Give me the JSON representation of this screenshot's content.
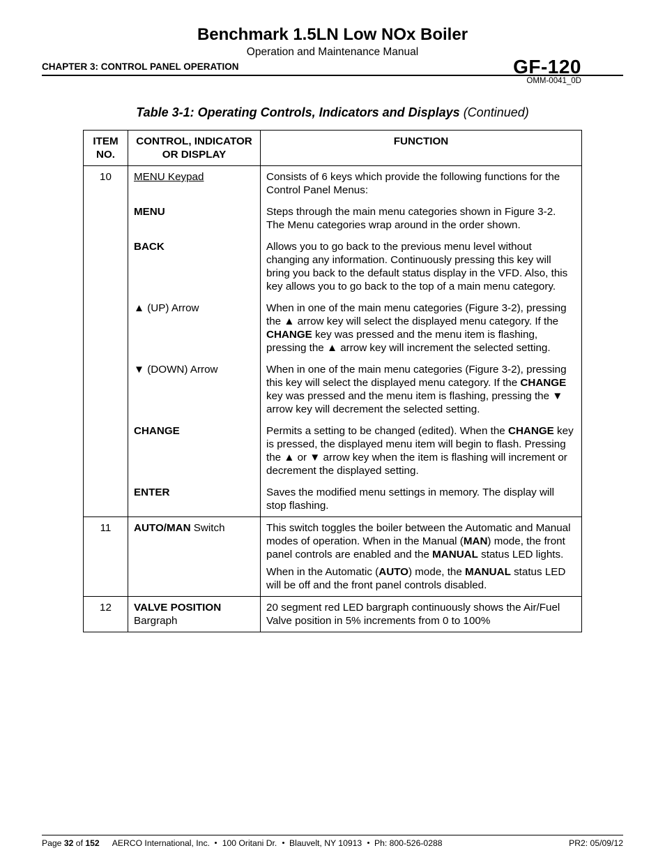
{
  "header": {
    "title": "Benchmark 1.5LN Low NOx Boiler",
    "subtitle": "Operation and Maintenance Manual",
    "chapter": "CHAPTER 3:  CONTROL PANEL OPERATION",
    "doc_code": "GF-120",
    "doc_sub": "OMM-0041_0D"
  },
  "table": {
    "caption_prefix": "Table 3-1:  Operating Controls, Indicators and Displays ",
    "caption_suffix": "(Continued)",
    "headers": {
      "item": "ITEM NO.",
      "control": "CONTROL, INDICATOR OR DISPLAY",
      "function": "FUNCTION"
    },
    "row10": {
      "item": "10",
      "control_main": "MENU Keypad",
      "func_main": "Consists of 6 keys which provide the following functions for the Control Panel Menus:",
      "menu_label": "MENU",
      "menu_func": "Steps through the main menu categories shown in Figure 3-2.  The Menu categories wrap around in the order shown.",
      "back_label": "BACK",
      "back_func": "Allows you to go back to the previous menu level without changing any information.  Continuously pressing this key will bring you back to the default status display in the VFD.  Also, this key allows you to go back to the top of a main menu category.",
      "up_label": "▲ (UP) Arrow",
      "up_func_1": "When in one of the main menu categories (Figure 3-2), pressing the ▲ arrow key will select the displayed menu category.  If the ",
      "up_func_bold": "CHANGE",
      "up_func_2": " key was pressed and the menu item is flashing, pressing the ▲ arrow key will increment the selected setting.",
      "down_label": "▼  (DOWN)  Arrow",
      "down_func_1": "When in one of the main menu categories (Figure 3-2), pressing this key will select the displayed menu category.  If the ",
      "down_func_bold": "CHANGE",
      "down_func_2": " key was pressed and the menu item is flashing, pressing the ▼ arrow key will decrement the selected setting.",
      "change_label": "CHANGE",
      "change_func_1": "Permits a setting to be changed (edited).  When the ",
      "change_func_bold": "CHANGE",
      "change_func_2": " key is pressed, the displayed menu item will begin to flash.  Pressing the ▲ or ▼ arrow key when the item is flashing will increment or decrement the displayed setting.",
      "enter_label": "ENTER",
      "enter_func": "Saves the modified menu settings in memory.  The display will stop flashing."
    },
    "row11": {
      "item": "11",
      "control_bold": "AUTO/MAN",
      "control_rest": " Switch",
      "func_p1_a": "This switch toggles the boiler between the Automatic and Manual modes of operation.  When in the Manual (",
      "func_p1_b": "MAN",
      "func_p1_c": ") mode, the front panel controls are enabled and the ",
      "func_p1_d": "MANUAL",
      "func_p1_e": " status LED lights.",
      "func_p2_a": "When in the Automatic (",
      "func_p2_b": "AUTO",
      "func_p2_c": ") mode, the ",
      "func_p2_d": "MANUAL",
      "func_p2_e": " status LED will be off and the front panel controls disabled."
    },
    "row12": {
      "item": "12",
      "control_bold": "VALVE POSITION",
      "control_rest": " Bargraph",
      "func": "20 segment red LED bargraph continuously shows the Air/Fuel Valve position in 5% increments from 0 to 100%"
    }
  },
  "footer": {
    "page_label_a": "Page ",
    "page_num": "32",
    "page_label_b": " of ",
    "page_total": "152",
    "company": "AERCO International, Inc. ",
    "addr": " 100 Oritani Dr. ",
    "city": " Blauvelt, NY 10913 ",
    "phone": " Ph: 800-526-0288",
    "rev": "PR2: 05/09/12"
  }
}
